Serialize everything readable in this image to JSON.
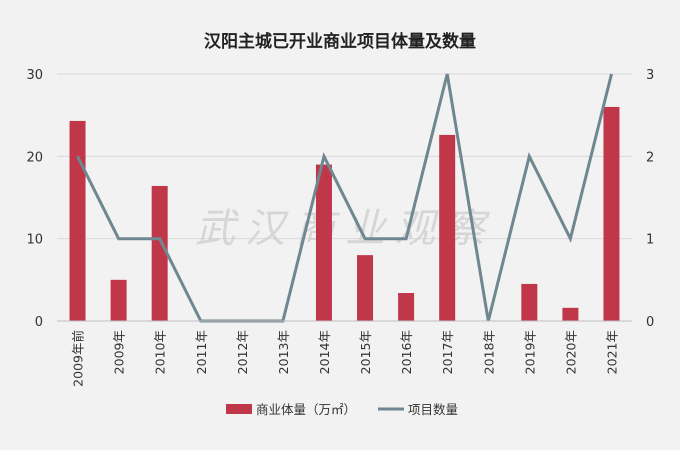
{
  "chart_data": {
    "type": "bar",
    "title": "汉阳主城已开业商业项目体量及数量",
    "watermark": "武汉商业观察",
    "categories": [
      "2009年前",
      "2009年",
      "2010年",
      "2011年",
      "2012年",
      "2013年",
      "2014年",
      "2015年",
      "2016年",
      "2017年",
      "2018年",
      "2019年",
      "2020年",
      "2021年"
    ],
    "series": [
      {
        "name": "商业体量（万㎡）",
        "type": "bar",
        "axis": "left",
        "color": "#c0374a",
        "values": [
          24.3,
          5,
          16.4,
          0,
          0,
          0,
          19,
          8,
          3.4,
          22.6,
          0,
          4.5,
          1.6,
          26
        ]
      },
      {
        "name": "项目数量",
        "type": "line",
        "axis": "right",
        "color": "#6f8790",
        "values": [
          2,
          1,
          1,
          0,
          0,
          0,
          2,
          1,
          1,
          3,
          0,
          2,
          1,
          3
        ]
      }
    ],
    "y_left": {
      "min": 0,
      "max": 30,
      "ticks": [
        0,
        10,
        20,
        30
      ]
    },
    "y_right": {
      "min": 0,
      "max": 3,
      "ticks": [
        0,
        1,
        2,
        3
      ]
    },
    "grid": true,
    "legend_position": "bottom"
  }
}
